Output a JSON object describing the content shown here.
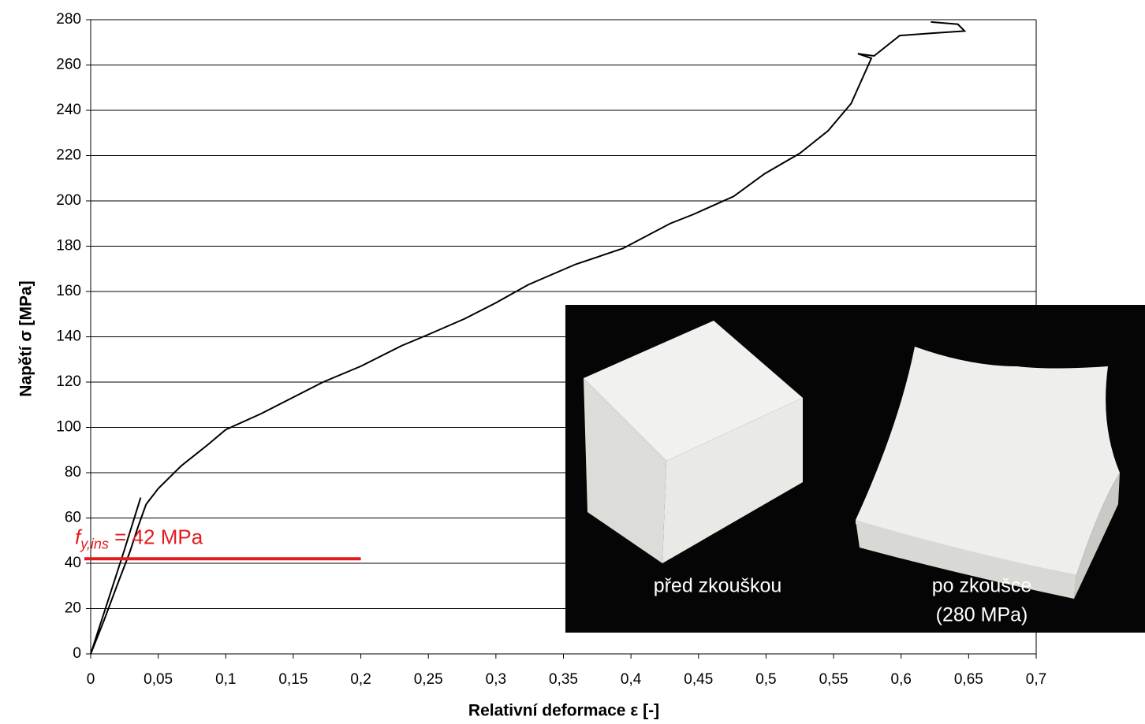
{
  "chart_data": {
    "type": "line",
    "x_label": "Relativní deformace ε [-]",
    "y_label": "Napětí  σ [MPa]",
    "xlim": [
      0,
      0.7
    ],
    "ylim": [
      0,
      280
    ],
    "xticks": [
      0,
      {
        "value": 0.05,
        "label": "0,05"
      },
      {
        "value": 0.1,
        "label": "0,1"
      },
      {
        "value": 0.15,
        "label": "0,15"
      },
      {
        "value": 0.2,
        "label": "0,2"
      },
      {
        "value": 0.25,
        "label": "0,25"
      },
      {
        "value": 0.3,
        "label": "0,3"
      },
      {
        "value": 0.35,
        "label": "0,35"
      },
      {
        "value": 0.4,
        "label": "0,4"
      },
      {
        "value": 0.45,
        "label": "0,45"
      },
      {
        "value": 0.5,
        "label": "0,5"
      },
      {
        "value": 0.55,
        "label": "0,55"
      },
      {
        "value": 0.6,
        "label": "0,6"
      },
      {
        "value": 0.65,
        "label": "0,65"
      },
      {
        "value": 0.7,
        "label": "0,7"
      }
    ],
    "yticks": [
      0,
      20,
      40,
      60,
      80,
      100,
      120,
      140,
      160,
      180,
      200,
      220,
      240,
      260,
      280
    ],
    "grid": true,
    "series": [
      {
        "color": "#000000",
        "x": [
          0,
          0.01,
          0.02,
          0.029,
          0.035,
          0.041,
          0.05,
          0.067,
          0.086,
          0.1,
          0.126,
          0.149,
          0.172,
          0.2,
          0.23,
          0.25,
          0.277,
          0.3,
          0.324,
          0.359,
          0.394,
          0.429,
          0.446,
          0.476,
          0.499,
          0.525,
          0.546,
          0.563,
          0.578,
          0.568,
          0.58,
          0.599,
          0.622,
          0.647,
          0.642,
          0.622
        ],
        "values": [
          0,
          15,
          31,
          45,
          56,
          66,
          73,
          83,
          92,
          99,
          106,
          113,
          120,
          127,
          136,
          141,
          148,
          155,
          163,
          172,
          179,
          190,
          194,
          202,
          212,
          221,
          231,
          243,
          263,
          265,
          264,
          273,
          274,
          275,
          278,
          279
        ]
      },
      {
        "color": "#000000",
        "x": [
          0,
          0.012,
          0.025,
          0.037
        ],
        "values": [
          0,
          22,
          46,
          69
        ]
      }
    ],
    "annotation": {
      "symbol": "f",
      "subscript": "y,ins",
      "text": " = 42 MPa",
      "color": "#e31a1c",
      "y": 42,
      "x": [
        0,
        0.2
      ]
    },
    "photo": {
      "left_label": "před zkouškou",
      "right_label": "po zkoušce",
      "right_sublabel": "(280 MPa)"
    }
  }
}
